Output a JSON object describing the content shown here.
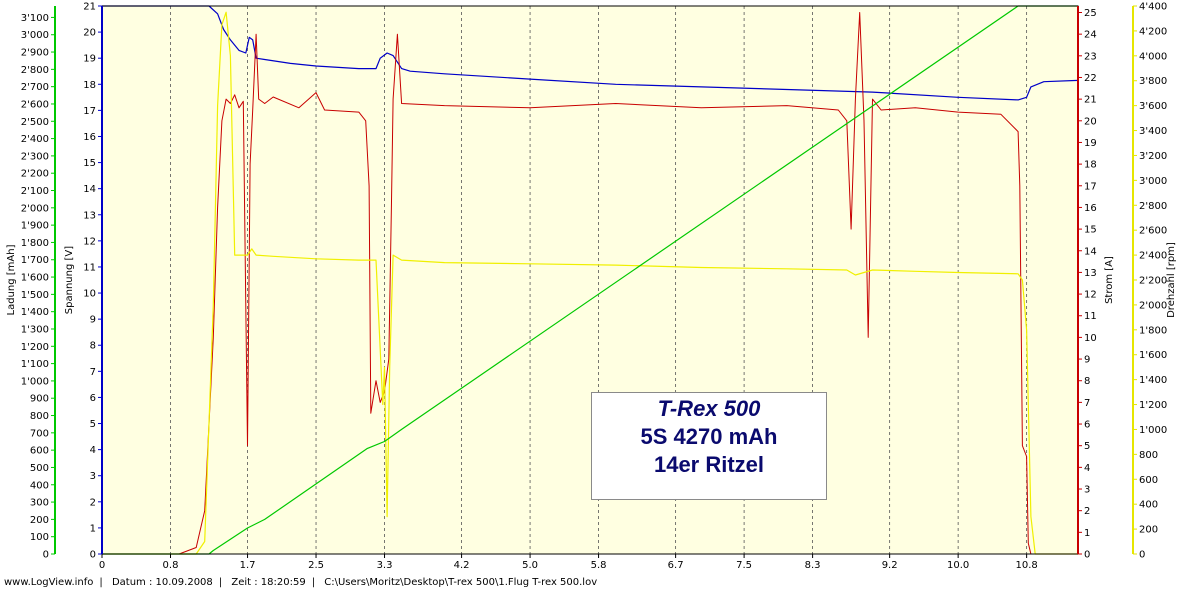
{
  "chart_data": {
    "type": "line",
    "x_ticks": [
      "0",
      "0.8",
      "1.7",
      "2.5",
      "3.3",
      "4.2",
      "5.0",
      "5.8",
      "6.7",
      "7.5",
      "8.3",
      "9.2",
      "10.0",
      "10.8"
    ],
    "xlim": [
      0,
      11.4
    ],
    "axes": {
      "ladung": {
        "label": "Ladung [mAh]",
        "range": [
          0,
          3166
        ],
        "color": "#00c800",
        "ticks": [
          "0",
          "100",
          "200",
          "300",
          "400",
          "500",
          "600",
          "700",
          "800",
          "900",
          "1'000",
          "1'100",
          "1'200",
          "1'300",
          "1'400",
          "1'500",
          "1'600",
          "1'700",
          "1'800",
          "1'900",
          "2'000",
          "2'100",
          "2'200",
          "2'300",
          "2'400",
          "2'500",
          "2'600",
          "2'700",
          "2'800",
          "2'900",
          "3'000",
          "3'100"
        ]
      },
      "spannung": {
        "label": "Spannung [V]",
        "range": [
          0,
          21
        ],
        "color": "#0000c8",
        "ticks": [
          "0",
          "1",
          "2",
          "3",
          "4",
          "5",
          "6",
          "7",
          "8",
          "9",
          "10",
          "11",
          "12",
          "13",
          "14",
          "15",
          "16",
          "17",
          "18",
          "19",
          "20",
          "21"
        ]
      },
      "strom": {
        "label": "Strom [A]",
        "range": [
          0,
          25.3
        ],
        "color": "#c80000",
        "ticks": [
          "0",
          "1",
          "2",
          "3",
          "4",
          "5",
          "6",
          "7",
          "8",
          "9",
          "10",
          "11",
          "12",
          "13",
          "14",
          "15",
          "16",
          "17",
          "18",
          "19",
          "20",
          "21",
          "22",
          "23",
          "24",
          "25"
        ]
      },
      "drehzahl": {
        "label": "Drehzahl [rpm]",
        "range": [
          0,
          4400
        ],
        "color": "#e6e600",
        "ticks": [
          "0",
          "200",
          "400",
          "600",
          "800",
          "1'000",
          "1'200",
          "1'400",
          "1'600",
          "1'800",
          "2'000",
          "2'200",
          "2'400",
          "2'600",
          "2'800",
          "3'000",
          "3'200",
          "3'400",
          "3'600",
          "3'800",
          "4'000",
          "4'200",
          "4'400"
        ]
      }
    },
    "series": [
      {
        "axis": "spannung",
        "color": "#0000c8",
        "lw": 1.2,
        "points": [
          [
            0,
            21
          ],
          [
            1.25,
            21
          ],
          [
            1.35,
            20.7
          ],
          [
            1.42,
            20.1
          ],
          [
            1.5,
            19.7
          ],
          [
            1.6,
            19.3
          ],
          [
            1.68,
            19.2
          ],
          [
            1.72,
            19.8
          ],
          [
            1.76,
            19.7
          ],
          [
            1.8,
            19.0
          ],
          [
            1.9,
            18.95
          ],
          [
            2.2,
            18.8
          ],
          [
            2.5,
            18.7
          ],
          [
            3.0,
            18.6
          ],
          [
            3.2,
            18.6
          ],
          [
            3.25,
            19.0
          ],
          [
            3.33,
            19.2
          ],
          [
            3.4,
            19.1
          ],
          [
            3.5,
            18.6
          ],
          [
            3.6,
            18.5
          ],
          [
            4.0,
            18.4
          ],
          [
            5.0,
            18.2
          ],
          [
            6.0,
            18.0
          ],
          [
            7.0,
            17.9
          ],
          [
            8.0,
            17.8
          ],
          [
            9.0,
            17.7
          ],
          [
            10.0,
            17.5
          ],
          [
            10.7,
            17.4
          ],
          [
            10.8,
            17.5
          ],
          [
            10.85,
            17.9
          ],
          [
            11.0,
            18.1
          ],
          [
            11.4,
            18.15
          ]
        ]
      },
      {
        "axis": "strom",
        "color": "#c80000",
        "lw": 1.0,
        "points": [
          [
            0,
            0
          ],
          [
            0.9,
            0
          ],
          [
            1.1,
            0.3
          ],
          [
            1.2,
            2
          ],
          [
            1.3,
            10
          ],
          [
            1.35,
            16
          ],
          [
            1.4,
            20
          ],
          [
            1.45,
            21
          ],
          [
            1.5,
            20.8
          ],
          [
            1.55,
            21.2
          ],
          [
            1.6,
            20.6
          ],
          [
            1.65,
            20.9
          ],
          [
            1.7,
            5
          ],
          [
            1.73,
            18
          ],
          [
            1.76,
            20.5
          ],
          [
            1.8,
            24
          ],
          [
            1.83,
            21
          ],
          [
            1.9,
            20.8
          ],
          [
            2.0,
            21.1
          ],
          [
            2.3,
            20.6
          ],
          [
            2.5,
            21.3
          ],
          [
            2.6,
            20.5
          ],
          [
            3.0,
            20.4
          ],
          [
            3.08,
            20
          ],
          [
            3.12,
            17
          ],
          [
            3.14,
            6.5
          ],
          [
            3.2,
            8
          ],
          [
            3.25,
            7
          ],
          [
            3.3,
            7.5
          ],
          [
            3.35,
            9
          ],
          [
            3.38,
            16
          ],
          [
            3.4,
            21
          ],
          [
            3.45,
            24
          ],
          [
            3.5,
            20.8
          ],
          [
            4.0,
            20.7
          ],
          [
            5.0,
            20.6
          ],
          [
            6.0,
            20.8
          ],
          [
            7.0,
            20.6
          ],
          [
            8.0,
            20.7
          ],
          [
            8.6,
            20.5
          ],
          [
            8.7,
            20
          ],
          [
            8.75,
            15
          ],
          [
            8.8,
            21
          ],
          [
            8.85,
            25
          ],
          [
            8.9,
            20
          ],
          [
            8.95,
            10
          ],
          [
            9.0,
            21
          ],
          [
            9.1,
            20.5
          ],
          [
            9.5,
            20.6
          ],
          [
            10.0,
            20.4
          ],
          [
            10.5,
            20.3
          ],
          [
            10.7,
            19.5
          ],
          [
            10.72,
            17
          ],
          [
            10.75,
            5
          ],
          [
            10.8,
            4.5
          ],
          [
            10.82,
            0.5
          ],
          [
            10.85,
            0
          ],
          [
            11.4,
            0
          ]
        ]
      },
      {
        "axis": "drehzahl",
        "color": "#f0f000",
        "lw": 1.2,
        "points": [
          [
            0,
            0
          ],
          [
            1.1,
            0
          ],
          [
            1.2,
            100
          ],
          [
            1.3,
            2000
          ],
          [
            1.35,
            3600
          ],
          [
            1.4,
            4250
          ],
          [
            1.45,
            4350
          ],
          [
            1.5,
            4000
          ],
          [
            1.55,
            2400
          ],
          [
            1.7,
            2400
          ],
          [
            1.75,
            2450
          ],
          [
            1.8,
            2400
          ],
          [
            2.0,
            2390
          ],
          [
            2.5,
            2370
          ],
          [
            3.0,
            2360
          ],
          [
            3.2,
            2360
          ],
          [
            3.28,
            1200
          ],
          [
            3.3,
            1500
          ],
          [
            3.33,
            300
          ],
          [
            3.36,
            1500
          ],
          [
            3.4,
            2400
          ],
          [
            3.5,
            2360
          ],
          [
            4.0,
            2340
          ],
          [
            5.0,
            2330
          ],
          [
            6.0,
            2320
          ],
          [
            7.0,
            2300
          ],
          [
            8.0,
            2290
          ],
          [
            8.7,
            2280
          ],
          [
            8.8,
            2240
          ],
          [
            9.0,
            2280
          ],
          [
            9.5,
            2270
          ],
          [
            10.0,
            2260
          ],
          [
            10.7,
            2250
          ],
          [
            10.75,
            2200
          ],
          [
            10.8,
            1800
          ],
          [
            10.85,
            300
          ],
          [
            10.9,
            0
          ],
          [
            11.4,
            0
          ]
        ]
      },
      {
        "axis": "ladung",
        "color": "#00c800",
        "lw": 1.2,
        "points": [
          [
            0,
            0
          ],
          [
            1.25,
            0
          ],
          [
            1.3,
            20
          ],
          [
            1.7,
            150
          ],
          [
            1.9,
            200
          ],
          [
            3.1,
            610
          ],
          [
            3.3,
            650
          ],
          [
            3.5,
            720
          ],
          [
            10.7,
            3166
          ],
          [
            11.4,
            3166
          ]
        ]
      }
    ]
  },
  "legend_box": {
    "line1": "T-Rex 500",
    "line2": "5S 4270 mAh",
    "line3": "14er Ritzel"
  },
  "footer": {
    "site": "www.LogView.info",
    "date": "Datum : 10.09.2008",
    "time": "Zeit : 18:20:59",
    "path": "C:\\Users\\Moritz\\Desktop\\T-rex 500\\1.Flug T-rex 500.lov"
  }
}
